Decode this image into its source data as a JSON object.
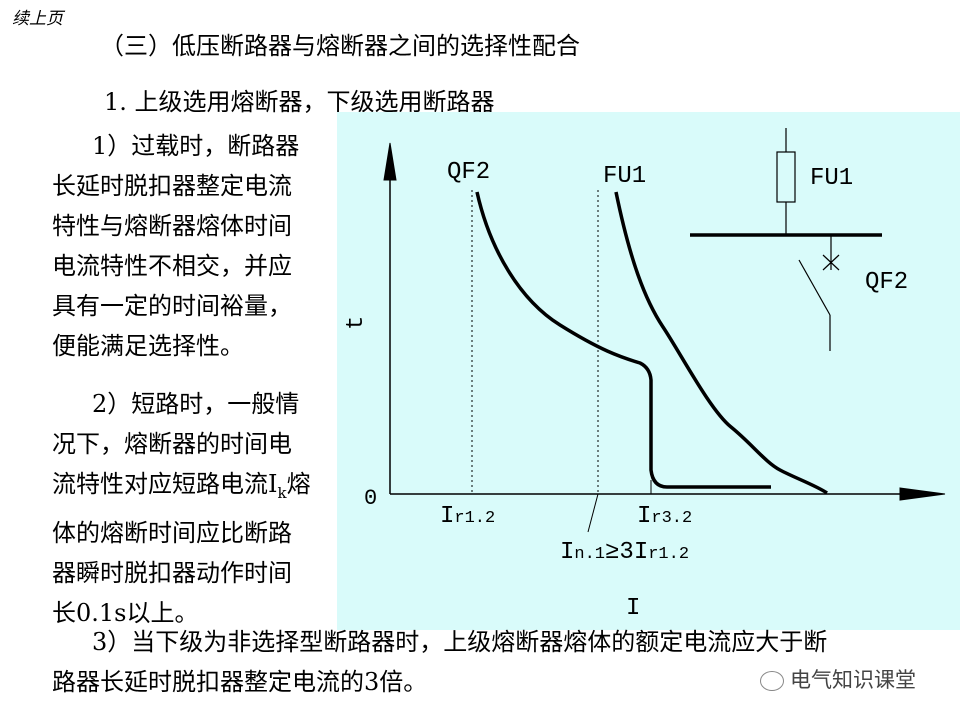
{
  "header": {
    "continued": "续上页",
    "section_title": "（三）低压断路器与熔断器之间的选择性配合",
    "subsection_title": "1. 上级选用熔断器，下级选用断路器"
  },
  "point1": {
    "lines": [
      "1）过载时，断路器",
      "长延时脱扣器整定电流",
      "特性与熔断器熔体时间",
      "电流特性不相交，并应",
      "具有一定的时间裕量，",
      "便能满足选择性。"
    ]
  },
  "point2": {
    "lines": [
      "2）短路时，一般情",
      "况下，熔断器的时间电",
      "流特性对应短路电流I",
      "熔",
      "体的熔断时间应比断路",
      "器瞬时脱扣器动作时间",
      "长0.1s以上。"
    ],
    "subscript_k": "k"
  },
  "point3": {
    "lines": [
      "3）当下级为非选择型断路器时，上级熔断器熔体的额定电流应大于断",
      "路器长延时脱扣器整定电流的3倍。"
    ]
  },
  "diagram": {
    "y_axis_label": "t",
    "x_axis_label": "I",
    "origin": "0",
    "curve_qf2_label": "QF2",
    "curve_fu1_label": "FU1",
    "tick_ir12": {
      "main": "I",
      "sub": "r1.2"
    },
    "tick_ir32": {
      "main": "I",
      "sub": "r3.2"
    },
    "condition": {
      "i1": "I",
      "s1": "n.1",
      "rel": "≥3I",
      "s2": "r1.2"
    },
    "schematic_fuse_label": "FU1",
    "schematic_breaker_label": "QF2",
    "background": "#d9fbfa"
  },
  "watermark": {
    "icon": "wechat-icon",
    "text": "电气知识课堂"
  }
}
